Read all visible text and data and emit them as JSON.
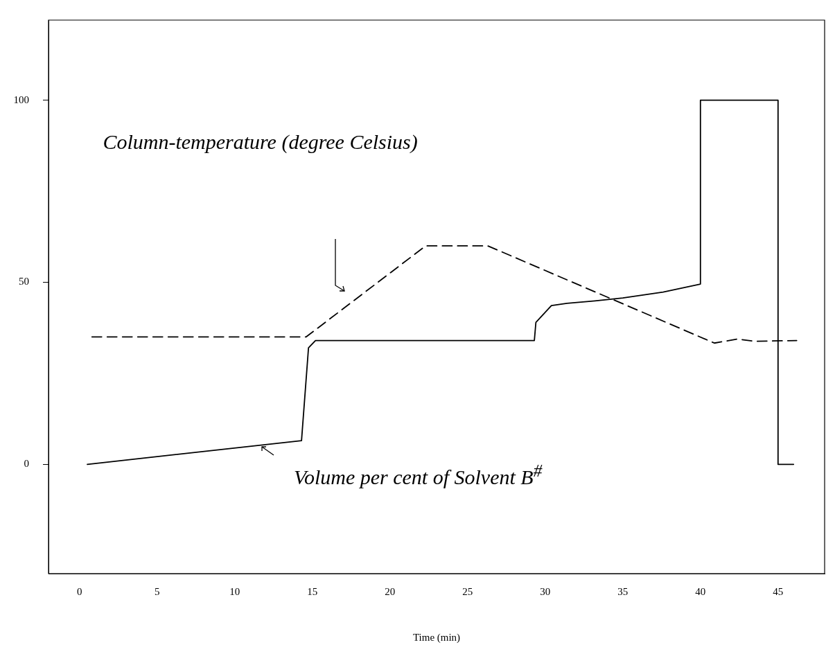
{
  "chart_data": {
    "type": "line",
    "xlabel": "Time (min)",
    "xlim": [
      -2,
      48
    ],
    "xticks": [
      0,
      5,
      10,
      15,
      20,
      25,
      30,
      35,
      40,
      45
    ],
    "ylim": [
      -30,
      122
    ],
    "yticks": [
      0,
      50,
      100
    ],
    "grid": false,
    "legend": false,
    "marker": "none",
    "annotations": [
      "Column-temperature (degree Celsius)",
      "Volume per cent of Solvent B$^{#}$"
    ],
    "series": [
      {
        "color": "#000000",
        "line_style": "solid",
        "x": [
          0.5,
          14.3,
          14.75,
          15.2,
          29.3,
          29.4,
          30.4,
          31.4,
          33.2,
          35.0,
          37.6,
          40.0,
          40.0,
          45.0,
          45.0,
          46.0
        ],
        "values": [
          0,
          6.5,
          32,
          34,
          34,
          39,
          43.6,
          44.2,
          44.9,
          45.7,
          47.3,
          49.5,
          100,
          100,
          0,
          0
        ]
      },
      {
        "color": "#000000",
        "line_style": "dashed",
        "x": [
          0.8,
          14.6,
          22.3,
          26.3,
          40.9,
          42.4,
          43.5,
          46.2
        ],
        "values": [
          35,
          35,
          60,
          60,
          33.3,
          34.4,
          33.8,
          34
        ]
      }
    ]
  }
}
